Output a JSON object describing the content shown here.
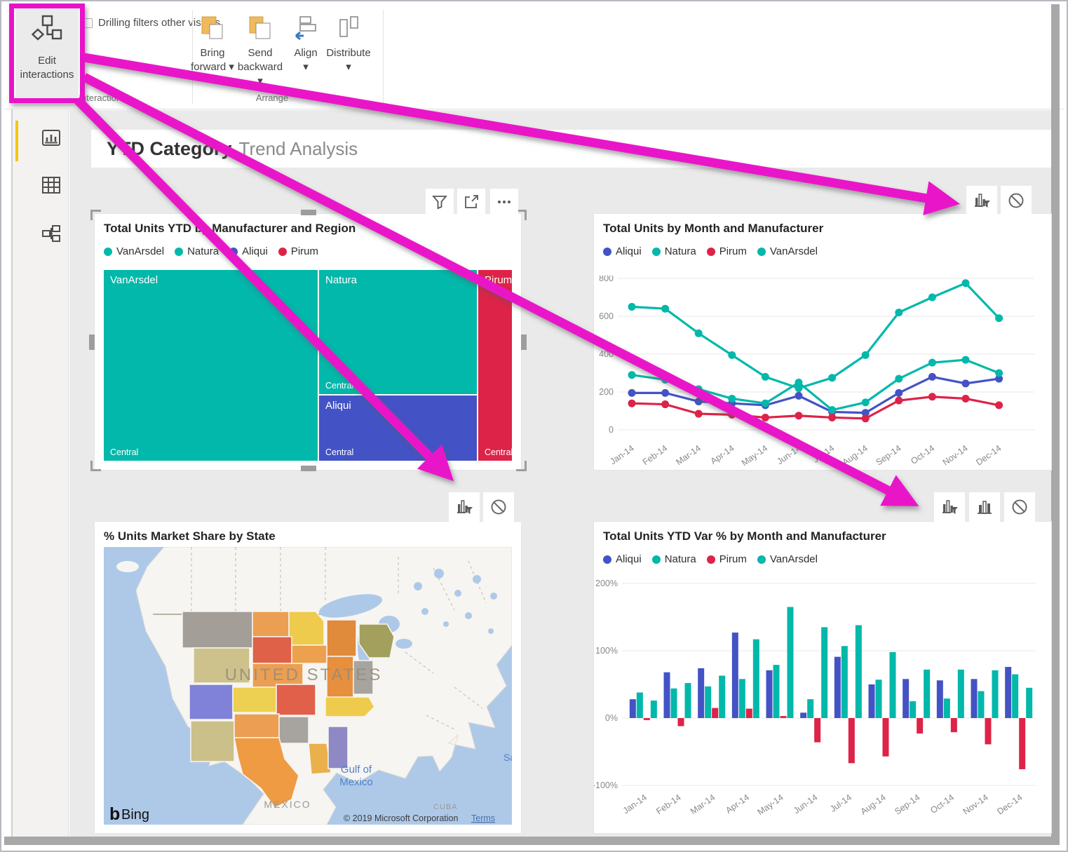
{
  "ribbon": {
    "edit_interactions": {
      "line1": "Edit",
      "line2": "interactions"
    },
    "drilling_label": "Drilling filters other visuals",
    "drilling_checked": false,
    "arrange_buttons": [
      {
        "line1": "Bring",
        "line2": "forward ▾"
      },
      {
        "line1": "Send",
        "line2": "backward ▾"
      },
      {
        "line1": "Align",
        "line2": "▾"
      },
      {
        "line1": "Distribute",
        "line2": "▾"
      }
    ],
    "group_interactions": "Interactions",
    "group_arrange": "Arrange"
  },
  "page": {
    "title_bold": "YTD Category",
    "title_light": "Trend Analysis"
  },
  "colors": {
    "teal": "#01B8AA",
    "blue": "#4353C5",
    "red": "#DD2348",
    "annotation_magenta": "#E912C9",
    "canvas_gray": "#EAEAEA",
    "ribbon_icon_orange": "#EFB95C",
    "active_view_yellow": "#F2C80F",
    "axis_text": "#888888",
    "gridline": "#e8e8e8"
  },
  "icons": {
    "sidebar": [
      "report-view-icon",
      "data-view-icon",
      "model-view-icon"
    ],
    "treemap_hover": [
      "filter-funnel-icon",
      "focus-mode-icon",
      "more-options-icon"
    ],
    "interaction": [
      "filter-interaction-icon",
      "highlight-interaction-icon",
      "none-interaction-icon"
    ],
    "ribbon": [
      "edit-interactions-icon",
      "bring-forward-icon",
      "send-backward-icon",
      "align-icon",
      "distribute-icon"
    ]
  },
  "visual_toolbars": {
    "treemap": [
      "filter-funnel",
      "focus-mode",
      "more-options"
    ],
    "line_chart": [
      "filter-interaction",
      "none-interaction"
    ],
    "map": [
      "filter-interaction",
      "none-interaction"
    ],
    "bar_chart": [
      "filter-interaction",
      "highlight-interaction",
      "none-interaction"
    ]
  },
  "map": {
    "title": "% Units Market Share by State",
    "labels": {
      "united_states": "UNITED STATES",
      "mexico": "MEXICO",
      "gulf_line1": "Gulf of",
      "gulf_line2": "Mexico",
      "cuba": "CUBA",
      "san": "San",
      "bing": "Bing",
      "copyright": "© 2019 Microsoft Corporation",
      "terms": "Terms"
    }
  },
  "chart_data": [
    {
      "type": "treemap",
      "title": "Total Units YTD by Manufacturer and Region",
      "legend_position": "top",
      "groups": [
        {
          "name": "VanArsdel",
          "region_label": "Central",
          "color": "#01B8AA",
          "share_pct": 52
        },
        {
          "name": "Natura",
          "region_label": "Central",
          "color": "#01B8AA",
          "share_pct": 25
        },
        {
          "name": "Aliqui",
          "region_label": "Central",
          "color": "#4353C5",
          "share_pct": 14
        },
        {
          "name": "Pirum",
          "region_label": "Central",
          "color": "#DD2348",
          "share_pct": 9
        }
      ]
    },
    {
      "type": "line",
      "title": "Total Units by Month and Manufacturer",
      "categories": [
        "Jan-14",
        "Feb-14",
        "Mar-14",
        "Apr-14",
        "May-14",
        "Jun-14",
        "Jul-14",
        "Aug-14",
        "Sep-14",
        "Oct-14",
        "Nov-14",
        "Dec-14"
      ],
      "ylim": [
        0,
        800
      ],
      "yticks": [
        0,
        200,
        400,
        600,
        800
      ],
      "legend_position": "top",
      "grid": true,
      "series": [
        {
          "name": "Aliqui",
          "color": "#4353C5",
          "values": [
            195,
            195,
            150,
            140,
            130,
            180,
            95,
            90,
            195,
            280,
            245,
            270
          ]
        },
        {
          "name": "Natura",
          "color": "#01B8AA",
          "values": [
            290,
            265,
            215,
            165,
            140,
            250,
            105,
            145,
            270,
            355,
            370,
            300
          ]
        },
        {
          "name": "Pirum",
          "color": "#DD2348",
          "values": [
            140,
            135,
            85,
            80,
            65,
            75,
            65,
            60,
            155,
            175,
            165,
            130
          ]
        },
        {
          "name": "VanArsdel",
          "color": "#01B8AA",
          "values": [
            650,
            640,
            510,
            395,
            280,
            220,
            275,
            395,
            620,
            700,
            775,
            590
          ]
        }
      ]
    },
    {
      "type": "bar",
      "title": "Total Units YTD Var % by Month and Manufacturer",
      "categories": [
        "Jan-14",
        "Feb-14",
        "Mar-14",
        "Apr-14",
        "May-14",
        "Jun-14",
        "Jul-14",
        "Aug-14",
        "Sep-14",
        "Oct-14",
        "Nov-14",
        "Dec-14"
      ],
      "ylim": [
        -100,
        200
      ],
      "yticks_pct": [
        200,
        100,
        0,
        -100
      ],
      "legend_position": "top",
      "grid": true,
      "series": [
        {
          "name": "Aliqui",
          "color": "#4353C5",
          "values": [
            28,
            68,
            74,
            127,
            71,
            8,
            91,
            50,
            58,
            56,
            58,
            76
          ]
        },
        {
          "name": "Natura",
          "color": "#01B8AA",
          "values": [
            38,
            44,
            47,
            58,
            79,
            28,
            107,
            57,
            25,
            29,
            40,
            65
          ]
        },
        {
          "name": "Pirum",
          "color": "#DD2348",
          "values": [
            -3,
            -12,
            15,
            14,
            3,
            -36,
            -67,
            -57,
            -23,
            -21,
            -39,
            -76
          ]
        },
        {
          "name": "VanArsdel",
          "color": "#01B8AA",
          "values": [
            26,
            52,
            63,
            117,
            165,
            135,
            138,
            98,
            72,
            72,
            71,
            45
          ]
        }
      ]
    }
  ]
}
